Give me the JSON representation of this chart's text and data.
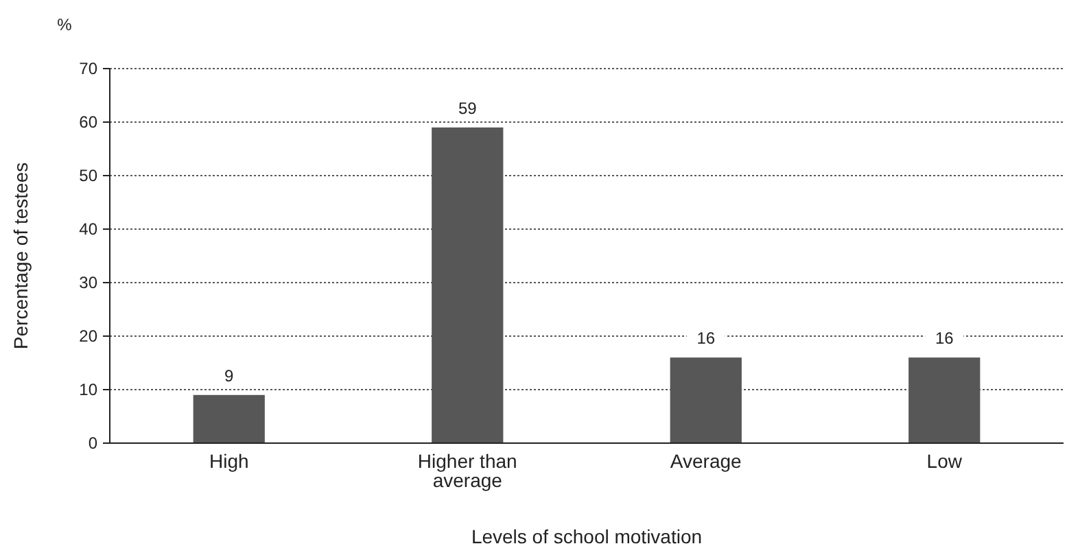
{
  "chart_data": {
    "type": "bar",
    "xlabel": "Levels of school motivation",
    "ylabel": "Percentage of testees",
    "annotations": [
      "%"
    ],
    "categories": [
      "High",
      "Higher than average",
      "Average",
      "Low"
    ],
    "values": [
      9,
      59,
      16,
      16
    ],
    "color": "#575757",
    "data_labels": true,
    "ylim": [
      0,
      70
    ],
    "yticks": [
      0,
      10,
      20,
      30,
      40,
      50,
      60,
      70
    ],
    "grid": "y"
  }
}
